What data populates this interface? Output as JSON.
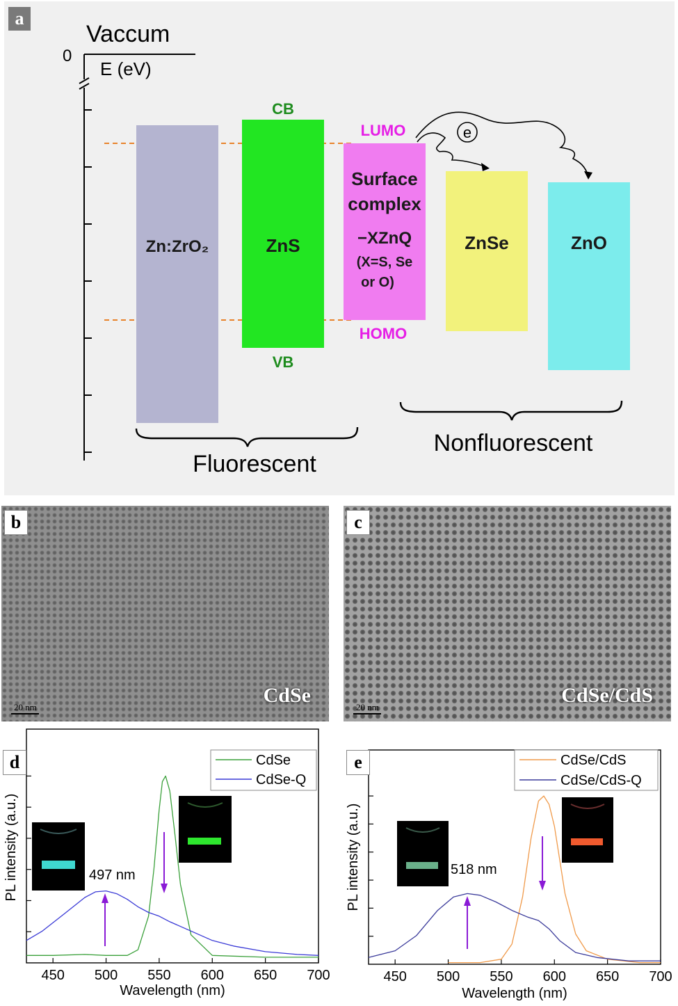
{
  "panels": {
    "a": "a",
    "b": "b",
    "c": "c",
    "d": "d",
    "e": "e"
  },
  "diagram": {
    "vacuum_label": "Vaccum",
    "zero_label": "0",
    "axis_label": "E (eV)",
    "cb_label": "CB",
    "vb_label": "VB",
    "lumo_label": "LUMO",
    "homo_label": "HOMO",
    "electron_label": "e",
    "blocks": {
      "zrzro2": "Zn:ZrO₂",
      "zns": "ZnS",
      "surface_line1": "Surface",
      "surface_line2": "complex",
      "surface_line3": "−XZnQ",
      "surface_line4": "(X=S, Se",
      "surface_line5": "or O)",
      "znse": "ZnSe",
      "zno": "ZnO"
    },
    "fluorescent_label": "Fluorescent",
    "nonfluorescent_label": "Nonfluorescent",
    "colors": {
      "zrzro2": "#b4b4d0",
      "zns": "#22e622",
      "surface": "#f07cf0",
      "znse": "#f2f27c",
      "zno": "#7cecec",
      "label_green": "#1e8c1e",
      "label_magenta": "#e61ee6",
      "dashed": "#e8822a"
    }
  },
  "tem": {
    "b_name": "CdSe",
    "c_name": "CdSe/CdS",
    "scale": "20  nm"
  },
  "chart_data": [
    {
      "type": "line",
      "panel": "d",
      "xlabel": "Wavelength (nm)",
      "ylabel": "PL intensity (a.u.)",
      "xlim": [
        425,
        700
      ],
      "ylim": [
        0,
        1.05
      ],
      "xticks": [
        450,
        500,
        550,
        600,
        650,
        700
      ],
      "legend_position": "top-right",
      "annotation": "497 nm",
      "series": [
        {
          "name": "CdSe",
          "color": "#3aa03a",
          "x": [
            425,
            450,
            480,
            500,
            520,
            530,
            540,
            545,
            550,
            553,
            556,
            560,
            565,
            570,
            580,
            600,
            650,
            700
          ],
          "y": [
            0.04,
            0.04,
            0.045,
            0.04,
            0.04,
            0.07,
            0.25,
            0.5,
            0.82,
            0.97,
            1.0,
            0.92,
            0.68,
            0.42,
            0.15,
            0.04,
            0.03,
            0.03
          ]
        },
        {
          "name": "CdSe-Q",
          "color": "#3a3ad6",
          "x": [
            425,
            440,
            460,
            480,
            490,
            500,
            510,
            520,
            530,
            540,
            550,
            560,
            580,
            600,
            620,
            650,
            680,
            700
          ],
          "y": [
            0.12,
            0.17,
            0.26,
            0.35,
            0.38,
            0.385,
            0.37,
            0.34,
            0.3,
            0.27,
            0.25,
            0.22,
            0.17,
            0.12,
            0.09,
            0.06,
            0.045,
            0.04
          ]
        }
      ]
    },
    {
      "type": "line",
      "panel": "e",
      "xlabel": "Wavelength (nm)",
      "ylabel": "PL intensity (a.u.)",
      "xlim": [
        425,
        700
      ],
      "ylim": [
        0,
        1.05
      ],
      "xticks": [
        450,
        500,
        550,
        600,
        650,
        700
      ],
      "legend_position": "top-right",
      "annotation": "518 nm",
      "series": [
        {
          "name": "CdSe/CdS",
          "color": "#f09a4a",
          "x": [
            500,
            530,
            550,
            560,
            570,
            578,
            585,
            590,
            595,
            600,
            605,
            610,
            620,
            630,
            650,
            680,
            700
          ],
          "y": [
            0.01,
            0.01,
            0.03,
            0.12,
            0.4,
            0.75,
            0.97,
            1.0,
            0.95,
            0.82,
            0.62,
            0.42,
            0.18,
            0.08,
            0.03,
            0.01,
            0.01
          ]
        },
        {
          "name": "CdSe/CdS-Q",
          "color": "#3a3a9a",
          "x": [
            425,
            450,
            470,
            490,
            505,
            518,
            530,
            545,
            560,
            575,
            585,
            595,
            605,
            620,
            640,
            670,
            700
          ],
          "y": [
            0.04,
            0.08,
            0.17,
            0.32,
            0.4,
            0.42,
            0.41,
            0.37,
            0.32,
            0.28,
            0.26,
            0.21,
            0.14,
            0.07,
            0.04,
            0.02,
            0.02
          ]
        }
      ]
    }
  ]
}
